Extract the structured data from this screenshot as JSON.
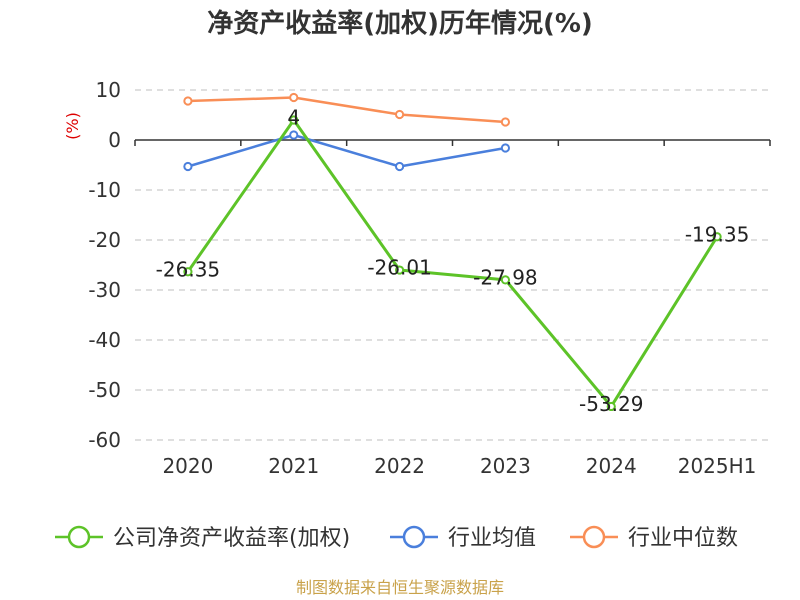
{
  "chart_data": {
    "type": "line",
    "title": "净资产收益率(加权)历年情况(%)",
    "unit_label": "(%)",
    "categories": [
      "2020",
      "2021",
      "2022",
      "2023",
      "2024",
      "2025H1"
    ],
    "ylim": [
      -60,
      10
    ],
    "yticks": [
      10,
      0,
      -10,
      -20,
      -30,
      -40,
      -50,
      -60
    ],
    "grid": true,
    "legend_position": "bottom",
    "series": [
      {
        "name": "公司净资产收益率(加权)",
        "color": "#5dc328",
        "values": [
          -26.35,
          4,
          -26.01,
          -27.98,
          -53.29,
          -19.35
        ],
        "labels": [
          "-26.35",
          "4",
          "-26.01",
          "-27.98",
          "-53.29",
          "-19.35"
        ]
      },
      {
        "name": "行业均值",
        "color": "#4a7fdc",
        "values": [
          -5.3,
          1.0,
          -5.3,
          -1.6,
          null,
          null
        ]
      },
      {
        "name": "行业中位数",
        "color": "#f98e56",
        "values": [
          7.8,
          8.5,
          5.1,
          3.6,
          null,
          null
        ]
      }
    ]
  },
  "colors": {
    "title": "#333333",
    "unit": "#dd0000",
    "grid": "#cccccc",
    "source": "#c9a24a"
  },
  "source": "制图数据来自恒生聚源数据库"
}
